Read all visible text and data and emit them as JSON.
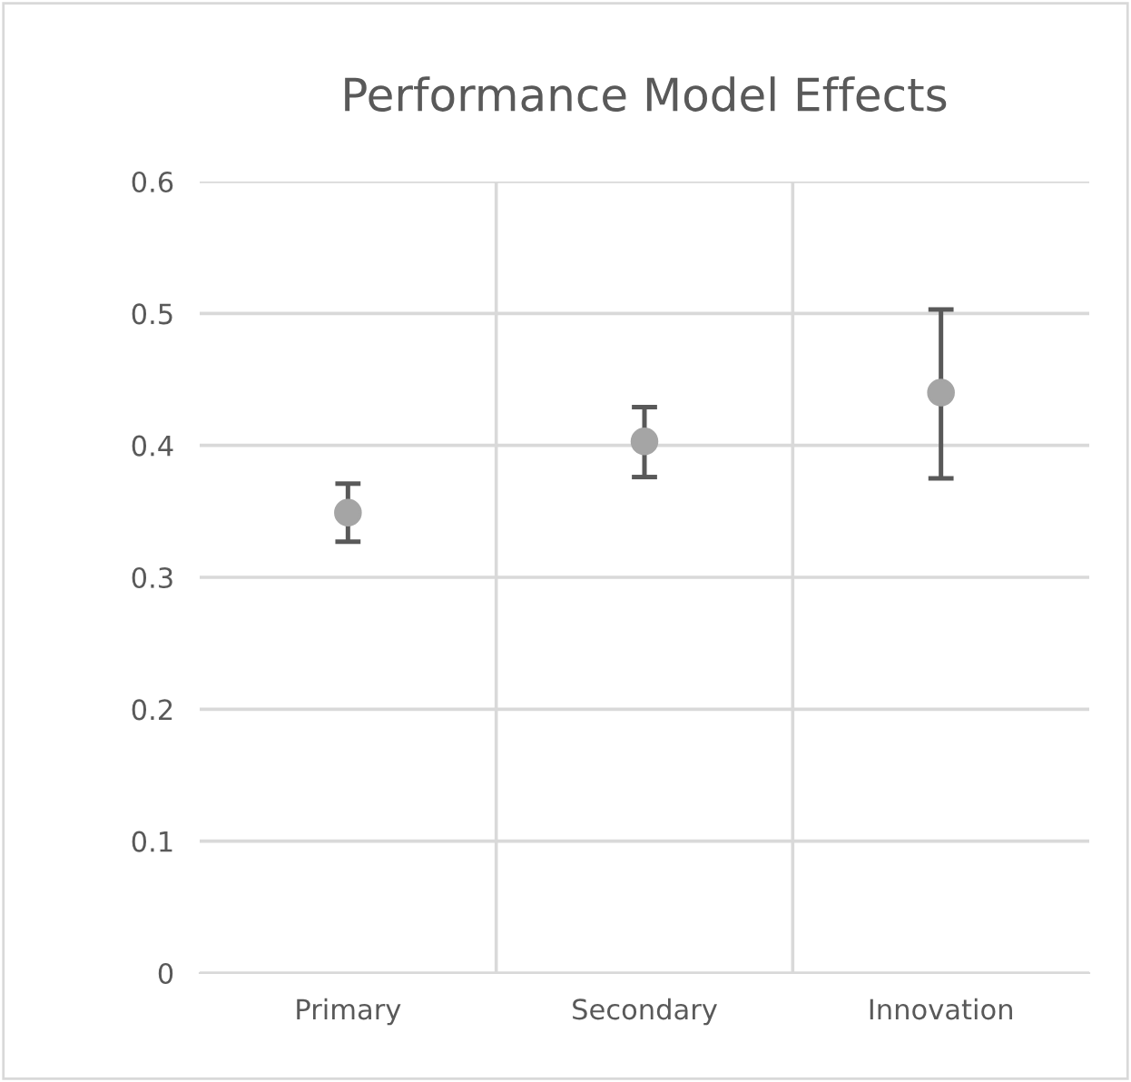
{
  "chart_data": {
    "type": "scatter",
    "title": "Performance Model Effects",
    "categories": [
      "Primary",
      "Secondary",
      "Innovation"
    ],
    "series": [
      {
        "color": "#a5a5a5",
        "values": [
          0.349,
          0.403,
          0.44
        ],
        "errors": [
          [
            0.327,
            0.371
          ],
          [
            0.376,
            0.429
          ],
          [
            0.375,
            0.503
          ]
        ]
      }
    ],
    "ylim": [
      0,
      0.6
    ],
    "yticks": [
      0,
      0.1,
      0.2,
      0.3,
      0.4,
      0.5,
      0.6
    ],
    "grid": true,
    "marker": "circle",
    "legend": false
  }
}
